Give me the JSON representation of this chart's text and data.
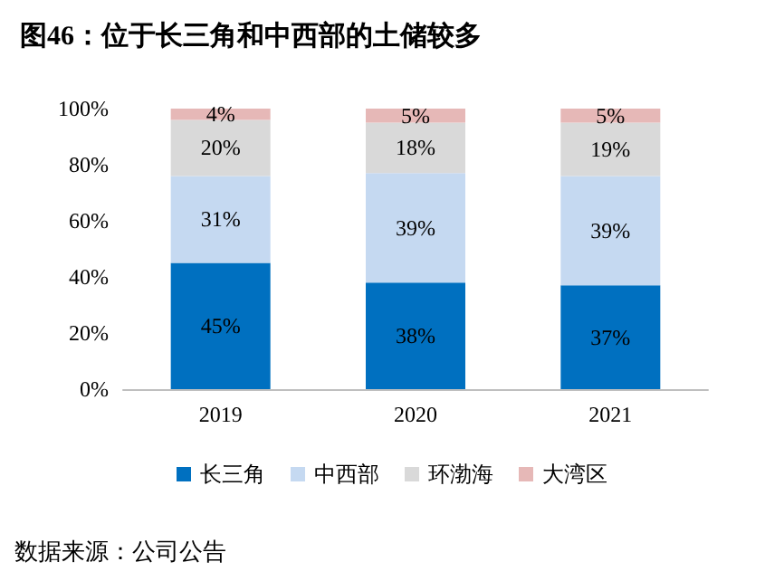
{
  "chart_data": {
    "type": "bar",
    "title": "图46：位于长三角和中西部的土储较多",
    "categories": [
      "2019",
      "2020",
      "2021"
    ],
    "stacked": true,
    "series": [
      {
        "name": "长三角",
        "color": "#0070c0",
        "values": [
          45,
          38,
          37
        ],
        "value_labels": [
          "45%",
          "38%",
          "37%"
        ]
      },
      {
        "name": "中西部",
        "color": "#c5d9f1",
        "values": [
          31,
          39,
          39
        ],
        "value_labels": [
          "31%",
          "39%",
          "39%"
        ]
      },
      {
        "name": "环渤海",
        "color": "#d9d9d9",
        "values": [
          20,
          18,
          19
        ],
        "value_labels": [
          "20%",
          "18%",
          "19%"
        ]
      },
      {
        "name": "大湾区",
        "color": "#e6b8b7",
        "values": [
          4,
          5,
          5
        ],
        "value_labels": [
          "4%",
          "5%",
          "5%"
        ]
      }
    ],
    "ylim": [
      0,
      100
    ],
    "yticks": [
      {
        "value": 0,
        "label": "0%"
      },
      {
        "value": 20,
        "label": "20%"
      },
      {
        "value": 40,
        "label": "40%"
      },
      {
        "value": 60,
        "label": "60%"
      },
      {
        "value": 80,
        "label": "80%"
      },
      {
        "value": 100,
        "label": "100%"
      }
    ],
    "grid": false,
    "legend": "bottom",
    "annotations": [
      "数据来源：公司公告"
    ]
  }
}
